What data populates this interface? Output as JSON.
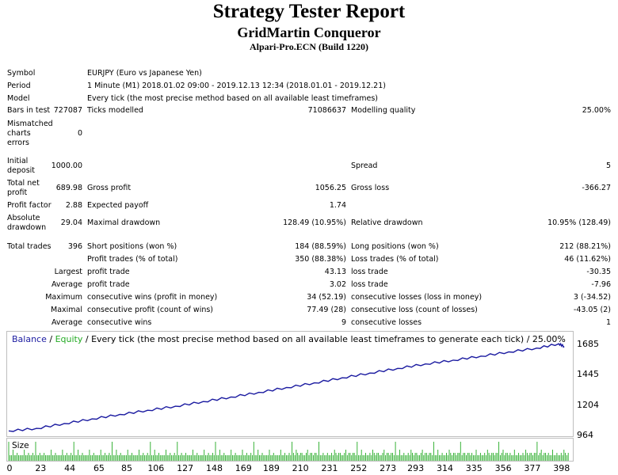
{
  "header": {
    "title": "Strategy Tester Report",
    "expert": "GridMartin Conqueror",
    "server": "Alpari-Pro.ECN (Build 1220)"
  },
  "report": {
    "symbol_label": "Symbol",
    "symbol_value": "EURJPY (Euro vs Japanese Yen)",
    "period_label": "Period",
    "period_value": "1 Minute (M1) 2018.01.02 09:00 - 2019.12.13 12:34 (2018.01.01 - 2019.12.21)",
    "model_label": "Model",
    "model_value": "Every tick (the most precise method based on all available least timeframes)",
    "bars_label": "Bars in test",
    "bars_value": "727087",
    "ticks_label": "Ticks modelled",
    "ticks_value": "71086637",
    "quality_label": "Modelling quality",
    "quality_value": "25.00%",
    "mismatch_label_1": "Mismatched",
    "mismatch_label_2": "charts",
    "mismatch_label_3": "errors",
    "mismatch_value": "0",
    "deposit_label_1": "Initial",
    "deposit_label_2": "deposit",
    "deposit_value": "1000.00",
    "spread_label": "Spread",
    "spread_value": "5",
    "netprofit_label_1": "Total net",
    "netprofit_label_2": "profit",
    "netprofit_value": "689.98",
    "grossprofit_label": "Gross profit",
    "grossprofit_value": "1056.25",
    "grossloss_label": "Gross loss",
    "grossloss_value": "-366.27",
    "pf_label": "Profit factor",
    "pf_value": "2.88",
    "payoff_label": "Expected payoff",
    "payoff_value": "1.74",
    "absdd_label_1": "Absolute",
    "absdd_label_2": "drawdown",
    "absdd_value": "29.04",
    "maxdd_label": "Maximal drawdown",
    "maxdd_value": "128.49 (10.95%)",
    "reldd_label": "Relative drawdown",
    "reldd_value": "10.95% (128.49)",
    "trades_label": "Total trades",
    "trades_value": "396",
    "short_label": "Short positions (won %)",
    "short_value": "184 (88.59%)",
    "long_label": "Long positions (won %)",
    "long_value": "212 (88.21%)",
    "profit_trades_label": "Profit trades (% of total)",
    "profit_trades_value": "350 (88.38%)",
    "loss_trades_label": "Loss trades (% of total)",
    "loss_trades_value": "46 (11.62%)",
    "largest_label": "Largest",
    "largest_profit_label": "profit trade",
    "largest_profit_value": "43.13",
    "largest_loss_label": "loss trade",
    "largest_loss_value": "-30.35",
    "average_label": "Average",
    "average_profit_label": "profit trade",
    "average_profit_value": "3.02",
    "average_loss_label": "loss trade",
    "average_loss_value": "-7.96",
    "maximum_label": "Maximum",
    "max_cons_wins_label": "consecutive wins (profit in money)",
    "max_cons_wins_value": "34 (52.19)",
    "max_cons_losses_label": "consecutive losses (loss in money)",
    "max_cons_losses_value": "3 (-34.52)",
    "maximal_label": "Maximal",
    "maximal_profit_label": "consecutive profit (count of wins)",
    "maximal_profit_value": "77.49 (28)",
    "maximal_loss_label": "consecutive loss (count of losses)",
    "maximal_loss_value": "-43.05 (2)",
    "average2_label": "Average",
    "avg_cons_wins_label": "consecutive wins",
    "avg_cons_wins_value": "9",
    "avg_cons_losses_label": "consecutive losses",
    "avg_cons_losses_value": "1"
  },
  "chart_legend": {
    "balance": "Balance",
    "sep1": " / ",
    "equity": "Equity",
    "rest": " / Every tick (the most precise method based on all available least timeframes to generate each tick) / 25.00%"
  },
  "size_label": "Size",
  "colors": {
    "balance": "#1a1aa0",
    "equity": "#22aa22",
    "volume": "#22aa22"
  },
  "chart_data": {
    "type": "line",
    "title": "",
    "xlabel": "",
    "ylabel": "",
    "x_ticks": [
      "0",
      "23",
      "44",
      "65",
      "85",
      "106",
      "127",
      "148",
      "169",
      "189",
      "210",
      "231",
      "252",
      "273",
      "293",
      "314",
      "335",
      "356",
      "377",
      "398"
    ],
    "y_ticks": [
      "1685",
      "1445",
      "1204",
      "964"
    ],
    "ylim": [
      964,
      1785
    ],
    "xlim": [
      0,
      405
    ],
    "series": [
      {
        "name": "Balance",
        "x": [
          0,
          20,
          40,
          60,
          80,
          100,
          120,
          140,
          160,
          180,
          200,
          220,
          240,
          260,
          280,
          300,
          320,
          340,
          360,
          380,
          396,
          400
        ],
        "values": [
          1000,
          1020,
          1058,
          1095,
          1130,
          1163,
          1195,
          1232,
          1268,
          1305,
          1343,
          1380,
          1420,
          1458,
          1495,
          1530,
          1560,
          1592,
          1625,
          1655,
          1690,
          1668
        ]
      }
    ]
  }
}
